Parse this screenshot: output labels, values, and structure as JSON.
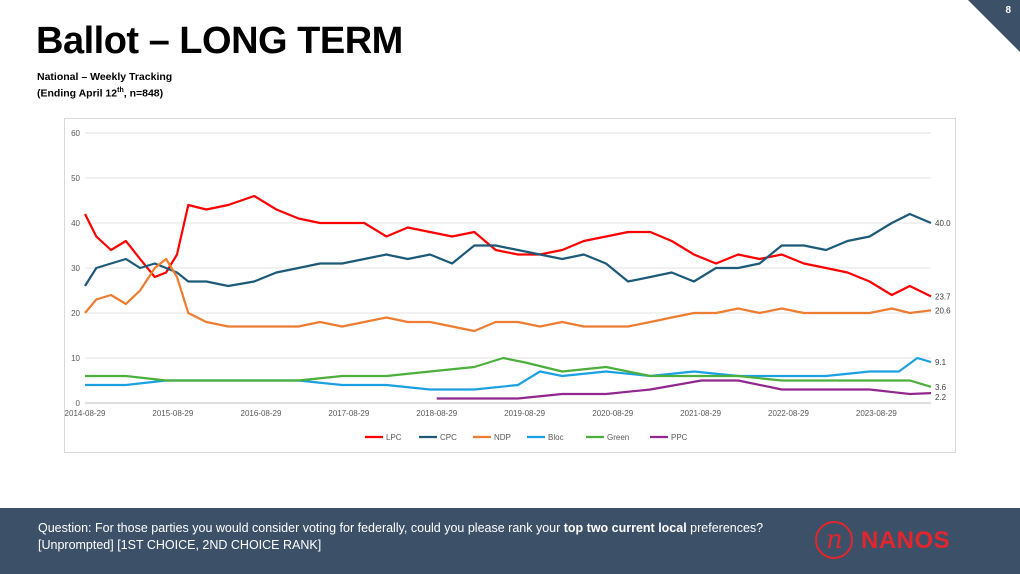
{
  "page": {
    "title": "Ballot – LONG TERM",
    "subtitle_line1": "National – Weekly Tracking",
    "subtitle_line2_pre": "(Ending April 12",
    "subtitle_line2_sup": "th",
    "subtitle_line2_post": ", n=848)",
    "page_number": "8"
  },
  "footer": {
    "question_pre": "Question: For those parties you would consider voting for federally, could you please rank your ",
    "question_bold": "top two current local",
    "question_post": " preferences? [Unprompted] [1ST CHOICE, 2ND CHOICE RANK]",
    "logo_mark": "n",
    "logo_text": "NANOS",
    "logo_color": "#e3262d",
    "bg_color": "#3c5068"
  },
  "chart_data": {
    "type": "line",
    "title": "",
    "xlabel": "",
    "ylabel": "",
    "ylim": [
      0,
      60
    ],
    "yticks": [
      0,
      10,
      20,
      30,
      40,
      50,
      60
    ],
    "xlim": [
      "2014-08-29",
      "2024-04-12"
    ],
    "xticks": [
      "2014-08-29",
      "2015-08-29",
      "2016-08-29",
      "2017-08-29",
      "2018-08-29",
      "2019-08-29",
      "2020-08-29",
      "2021-08-29",
      "2022-08-29",
      "2023-08-29"
    ],
    "grid": "horizontal",
    "legend_position": "bottom",
    "series": [
      {
        "name": "LPC",
        "color": "#ff0000",
        "end_label": "23.7",
        "x": [
          "2014-08-29",
          "2014-10-15",
          "2014-12-15",
          "2015-02-15",
          "2015-04-15",
          "2015-06-15",
          "2015-08-01",
          "2015-09-15",
          "2015-11-01",
          "2016-01-15",
          "2016-04-15",
          "2016-08-01",
          "2016-11-01",
          "2017-02-01",
          "2017-05-01",
          "2017-08-01",
          "2017-11-01",
          "2018-02-01",
          "2018-05-01",
          "2018-08-01",
          "2018-11-01",
          "2019-02-01",
          "2019-05-01",
          "2019-08-01",
          "2019-11-01",
          "2020-02-01",
          "2020-05-01",
          "2020-08-01",
          "2020-11-01",
          "2021-02-01",
          "2021-05-01",
          "2021-08-01",
          "2021-11-01",
          "2022-02-01",
          "2022-05-01",
          "2022-08-01",
          "2022-11-01",
          "2023-02-01",
          "2023-05-01",
          "2023-08-01",
          "2023-11-01",
          "2024-01-15",
          "2024-04-12"
        ],
        "values": [
          42,
          37,
          34,
          36,
          32,
          28,
          29,
          33,
          44,
          43,
          44,
          46,
          43,
          41,
          40,
          40,
          40,
          37,
          39,
          38,
          37,
          38,
          34,
          33,
          33,
          34,
          36,
          37,
          38,
          38,
          36,
          33,
          31,
          33,
          32,
          33,
          31,
          30,
          29,
          27,
          24,
          26,
          23.7
        ]
      },
      {
        "name": "CPC",
        "color": "#1c5a78",
        "end_label": "40.0",
        "x": [
          "2014-08-29",
          "2014-10-15",
          "2014-12-15",
          "2015-02-15",
          "2015-04-15",
          "2015-06-15",
          "2015-08-01",
          "2015-09-15",
          "2015-11-01",
          "2016-01-15",
          "2016-04-15",
          "2016-08-01",
          "2016-11-01",
          "2017-02-01",
          "2017-05-01",
          "2017-08-01",
          "2017-11-01",
          "2018-02-01",
          "2018-05-01",
          "2018-08-01",
          "2018-11-01",
          "2019-02-01",
          "2019-05-01",
          "2019-08-01",
          "2019-11-01",
          "2020-02-01",
          "2020-05-01",
          "2020-08-01",
          "2020-11-01",
          "2021-02-01",
          "2021-05-01",
          "2021-08-01",
          "2021-11-01",
          "2022-02-01",
          "2022-05-01",
          "2022-08-01",
          "2022-11-01",
          "2023-02-01",
          "2023-05-01",
          "2023-08-01",
          "2023-11-01",
          "2024-01-15",
          "2024-04-12"
        ],
        "values": [
          26,
          30,
          31,
          32,
          30,
          31,
          30,
          29,
          27,
          27,
          26,
          27,
          29,
          30,
          31,
          31,
          32,
          33,
          32,
          33,
          31,
          35,
          35,
          34,
          33,
          32,
          33,
          31,
          27,
          28,
          29,
          27,
          30,
          30,
          31,
          35,
          35,
          34,
          36,
          37,
          40,
          42,
          40.0
        ]
      },
      {
        "name": "NDP",
        "color": "#ed7d31",
        "end_label": "20.6",
        "x": [
          "2014-08-29",
          "2014-10-15",
          "2014-12-15",
          "2015-02-15",
          "2015-04-15",
          "2015-06-15",
          "2015-08-01",
          "2015-09-15",
          "2015-11-01",
          "2016-01-15",
          "2016-04-15",
          "2016-08-01",
          "2016-11-01",
          "2017-02-01",
          "2017-05-01",
          "2017-08-01",
          "2017-11-01",
          "2018-02-01",
          "2018-05-01",
          "2018-08-01",
          "2018-11-01",
          "2019-02-01",
          "2019-05-01",
          "2019-08-01",
          "2019-11-01",
          "2020-02-01",
          "2020-05-01",
          "2020-08-01",
          "2020-11-01",
          "2021-02-01",
          "2021-05-01",
          "2021-08-01",
          "2021-11-01",
          "2022-02-01",
          "2022-05-01",
          "2022-08-01",
          "2022-11-01",
          "2023-02-01",
          "2023-05-01",
          "2023-08-01",
          "2023-11-01",
          "2024-01-15",
          "2024-04-12"
        ],
        "values": [
          20,
          23,
          24,
          22,
          25,
          30,
          32,
          28,
          20,
          18,
          17,
          17,
          17,
          17,
          18,
          17,
          18,
          19,
          18,
          18,
          17,
          16,
          18,
          18,
          17,
          18,
          17,
          17,
          17,
          18,
          19,
          20,
          20,
          21,
          20,
          21,
          20,
          20,
          20,
          20,
          21,
          20,
          20.6
        ]
      },
      {
        "name": "Bloc",
        "color": "#1ba1e2",
        "end_label": "9.1",
        "x": [
          "2014-08-29",
          "2015-02-15",
          "2015-08-01",
          "2016-02-01",
          "2016-08-01",
          "2017-02-01",
          "2017-08-01",
          "2018-02-01",
          "2018-08-01",
          "2019-02-01",
          "2019-08-01",
          "2019-11-01",
          "2020-02-01",
          "2020-08-01",
          "2021-02-01",
          "2021-08-01",
          "2022-02-01",
          "2022-08-01",
          "2023-02-01",
          "2023-08-01",
          "2023-12-01",
          "2024-02-15",
          "2024-04-12"
        ],
        "values": [
          4,
          4,
          5,
          5,
          5,
          5,
          4,
          4,
          3,
          3,
          4,
          7,
          6,
          7,
          6,
          7,
          6,
          6,
          6,
          7,
          7,
          10,
          9.1
        ]
      },
      {
        "name": "Green",
        "color": "#4caf3c",
        "end_label": "3.6",
        "x": [
          "2014-08-29",
          "2015-02-15",
          "2015-08-01",
          "2016-02-01",
          "2016-08-01",
          "2017-02-01",
          "2017-08-01",
          "2018-02-01",
          "2018-08-01",
          "2019-02-01",
          "2019-06-01",
          "2019-09-01",
          "2020-02-01",
          "2020-08-01",
          "2021-02-01",
          "2021-08-01",
          "2022-02-01",
          "2022-08-01",
          "2023-02-01",
          "2023-08-01",
          "2024-01-15",
          "2024-04-12"
        ],
        "values": [
          6,
          6,
          5,
          5,
          5,
          5,
          6,
          6,
          7,
          8,
          10,
          9,
          7,
          8,
          6,
          6,
          6,
          5,
          5,
          5,
          5,
          3.6
        ]
      },
      {
        "name": "PPC",
        "color": "#92278f",
        "end_label": "2.2",
        "x": [
          "2018-08-29",
          "2019-02-01",
          "2019-08-01",
          "2020-02-01",
          "2020-08-01",
          "2021-02-01",
          "2021-09-01",
          "2022-02-01",
          "2022-08-01",
          "2023-02-01",
          "2023-08-01",
          "2024-01-15",
          "2024-04-12"
        ],
        "values": [
          1,
          1,
          1,
          2,
          2,
          3,
          5,
          5,
          3,
          3,
          3,
          2,
          2.2
        ]
      }
    ]
  }
}
